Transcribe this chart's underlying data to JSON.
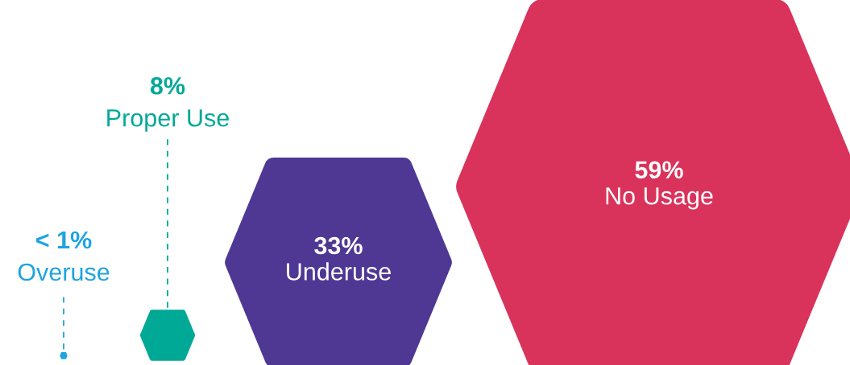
{
  "chart_data": {
    "type": "other",
    "categories": [
      "Overuse",
      "Proper Use",
      "Underuse",
      "No Usage"
    ],
    "values": [
      1,
      8,
      33,
      59
    ],
    "value_labels": [
      "< 1%",
      "8%",
      "33%",
      "59%"
    ],
    "colors": [
      "#1fa3e0",
      "#00a896",
      "#4f3894",
      "#d9335c"
    ]
  }
}
